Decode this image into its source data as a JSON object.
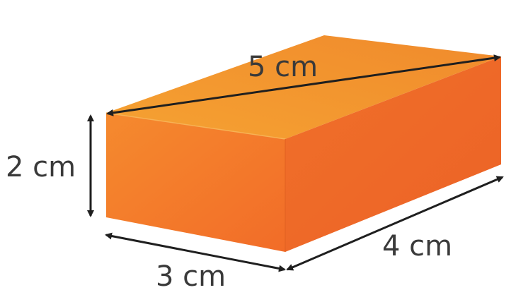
{
  "diagram": {
    "shape": "rectangular-prism",
    "colors": {
      "top_face": "#f39a2e",
      "front_face": "#f47a2c",
      "side_face": "#ee6a26",
      "arrow": "#1f1f1f",
      "label": "#3a3a3a"
    },
    "labels": {
      "diagonal": "5 cm",
      "height": "2 cm",
      "width": "3 cm",
      "depth": "4 cm"
    }
  }
}
